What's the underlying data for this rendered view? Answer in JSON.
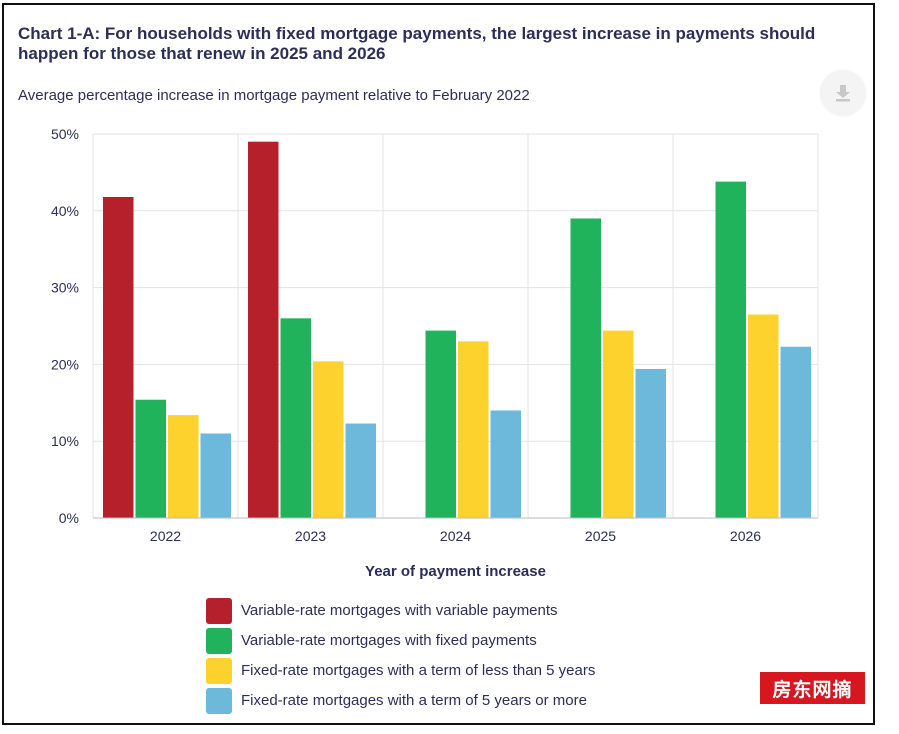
{
  "header": {
    "title": "Chart 1-A: For households with fixed mortgage payments, the largest increase in payments should happen for those that renew in 2025 and 2026",
    "subtitle": "Average percentage increase in mortgage payment relative to February 2022"
  },
  "toolbar": {
    "download_icon": "download-icon"
  },
  "watermark": {
    "text": "房东网摘"
  },
  "chart_data": {
    "type": "bar",
    "title": "Chart 1-A: For households with fixed mortgage payments, the largest increase in payments should happen for those that renew in 2025 and 2026",
    "subtitle": "Average percentage increase in mortgage payment relative to February 2022",
    "xlabel": "Year of payment increase",
    "ylabel": "",
    "categories": [
      "2022",
      "2023",
      "2024",
      "2025",
      "2026"
    ],
    "ylim": [
      0,
      50
    ],
    "yticks": [
      0,
      10,
      20,
      30,
      40,
      50
    ],
    "ytick_labels": [
      "0%",
      "10%",
      "20%",
      "30%",
      "40%",
      "50%"
    ],
    "grid": true,
    "legend_position": "bottom",
    "series": [
      {
        "name": "Variable-rate mortgages with variable payments",
        "color": "#b6202a",
        "values": [
          41.8,
          49.0,
          null,
          null,
          null
        ]
      },
      {
        "name": "Variable-rate mortgages with fixed payments",
        "color": "#21b35c",
        "values": [
          15.4,
          26.0,
          24.4,
          39.0,
          43.8
        ]
      },
      {
        "name": "Fixed-rate mortgages with a term of less than 5 years",
        "color": "#fdd22d",
        "values": [
          13.4,
          20.4,
          23.0,
          24.4,
          26.5
        ]
      },
      {
        "name": "Fixed-rate mortgages with a term of 5 years or more",
        "color": "#6cb9dc",
        "values": [
          11.0,
          12.3,
          14.0,
          19.4,
          22.3
        ]
      }
    ]
  }
}
